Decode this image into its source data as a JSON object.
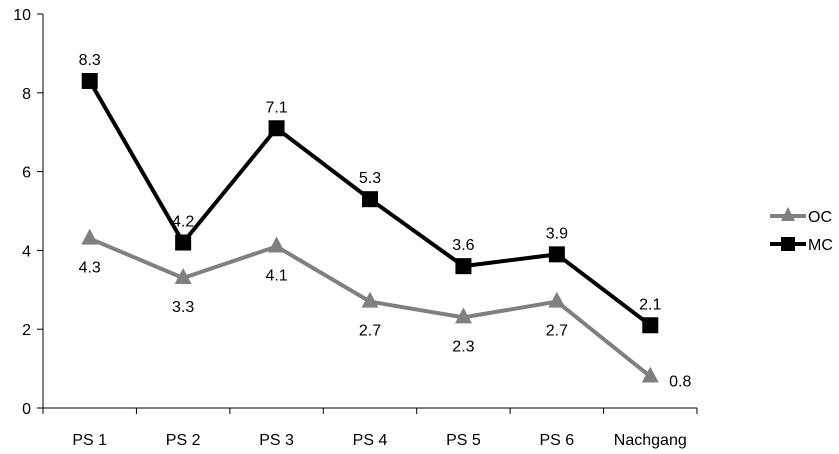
{
  "chart_data": {
    "type": "line",
    "categories": [
      "PS 1",
      "PS 2",
      "PS 3",
      "PS 4",
      "PS 5",
      "PS 6",
      "Nachgang"
    ],
    "ylim": [
      0,
      10
    ],
    "yticks": [
      0,
      2,
      4,
      6,
      8,
      10
    ],
    "grid": false,
    "legend": "right",
    "series": [
      {
        "name": "OC",
        "values": [
          4.3,
          3.3,
          4.1,
          2.7,
          2.3,
          2.7,
          0.8
        ],
        "labels": [
          "4.3",
          "3.3",
          "4.1",
          "2.7",
          "2.3",
          "2.7",
          "0.8"
        ],
        "color": "#808080",
        "marker": "triangle"
      },
      {
        "name": "MC",
        "values": [
          8.3,
          4.2,
          7.1,
          5.3,
          3.6,
          3.9,
          2.1
        ],
        "labels": [
          "8.3",
          "4.2",
          "7.1",
          "5.3",
          "3.6",
          "3.9",
          "2.1"
        ],
        "color": "#000000",
        "marker": "square"
      }
    ]
  }
}
